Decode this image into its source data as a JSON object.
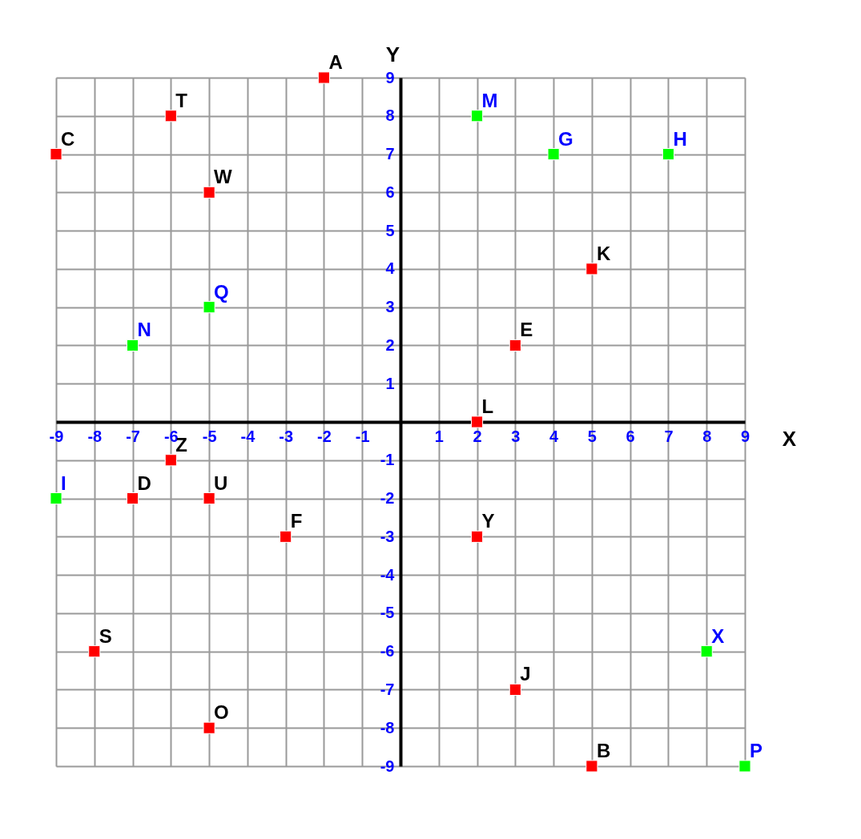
{
  "chart_data": {
    "type": "scatter",
    "xlabel": "X",
    "ylabel": "Y",
    "marker": "square",
    "grid": true,
    "xlim": [
      -9,
      9
    ],
    "ylim": [
      -9,
      9
    ],
    "xticks": [
      -9,
      -8,
      -7,
      -6,
      -5,
      -4,
      -3,
      -2,
      -1,
      1,
      2,
      3,
      4,
      5,
      6,
      7,
      8,
      9
    ],
    "yticks": [
      -9,
      -8,
      -7,
      -6,
      -5,
      -4,
      -3,
      -2,
      -1,
      1,
      2,
      3,
      4,
      5,
      6,
      7,
      8,
      9
    ],
    "series": [
      {
        "color": "#ff0000",
        "x": [
          -2,
          -6,
          -9,
          -5,
          5,
          3,
          2,
          -6,
          -7,
          -5,
          -3,
          2,
          -8,
          3,
          -5,
          5
        ],
        "values": [
          9,
          8,
          7,
          6,
          4,
          2,
          0,
          -1,
          -2,
          -2,
          -3,
          -3,
          -6,
          -7,
          -8,
          -9
        ],
        "value_labels": [
          "A",
          "T",
          "C",
          "W",
          "K",
          "E",
          "L",
          "Z",
          "D",
          "U",
          "F",
          "Y",
          "S",
          "J",
          "O",
          "B"
        ]
      },
      {
        "color": "#00ff00",
        "x": [
          2,
          4,
          7,
          -5,
          -7,
          -9,
          8,
          9
        ],
        "values": [
          8,
          7,
          7,
          3,
          2,
          -2,
          -6,
          -9
        ],
        "value_labels": [
          "M",
          "G",
          "H",
          "Q",
          "N",
          "I",
          "X",
          "P"
        ]
      }
    ]
  }
}
